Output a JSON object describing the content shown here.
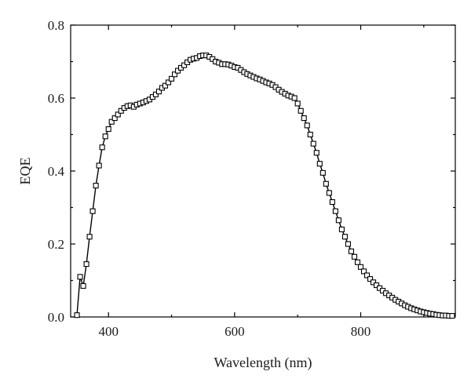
{
  "chart_data": {
    "type": "line",
    "title": "",
    "xlabel": "Wavelength (nm)",
    "ylabel": "EQE",
    "xlim": [
      340,
      950
    ],
    "ylim": [
      0.0,
      0.8
    ],
    "x_ticks": [
      400,
      600,
      800
    ],
    "x_tick_labels": [
      "400",
      "600",
      "800"
    ],
    "y_ticks": [
      0.0,
      0.2,
      0.4,
      0.6,
      0.8
    ],
    "y_tick_labels": [
      "0.0",
      "0.2",
      "0.4",
      "0.6",
      "0.8"
    ],
    "grid": false,
    "legend": "none",
    "marker": "open-square",
    "line_color": "#000000",
    "series": [
      {
        "x": [
          350,
          355,
          360,
          365,
          370,
          375,
          380,
          385,
          390,
          395,
          400,
          405,
          410,
          415,
          420,
          425,
          430,
          435,
          440,
          445,
          450,
          455,
          460,
          465,
          470,
          475,
          480,
          485,
          490,
          495,
          500,
          505,
          510,
          515,
          520,
          525,
          530,
          535,
          540,
          545,
          550,
          555,
          560,
          565,
          570,
          575,
          580,
          585,
          590,
          595,
          600,
          605,
          610,
          615,
          620,
          625,
          630,
          635,
          640,
          645,
          650,
          655,
          660,
          665,
          670,
          675,
          680,
          685,
          690,
          695,
          700,
          705,
          710,
          715,
          720,
          725,
          730,
          735,
          740,
          745,
          750,
          755,
          760,
          765,
          770,
          775,
          780,
          785,
          790,
          795,
          800,
          805,
          810,
          815,
          820,
          825,
          830,
          835,
          840,
          845,
          850,
          855,
          860,
          865,
          870,
          875,
          880,
          885,
          890,
          895,
          900,
          905,
          910,
          915,
          920,
          925,
          930,
          935,
          940,
          945
        ],
        "y": [
          0.005,
          0.11,
          0.085,
          0.145,
          0.22,
          0.29,
          0.36,
          0.415,
          0.465,
          0.495,
          0.515,
          0.535,
          0.545,
          0.555,
          0.565,
          0.573,
          0.578,
          0.58,
          0.576,
          0.582,
          0.585,
          0.588,
          0.592,
          0.596,
          0.603,
          0.61,
          0.618,
          0.628,
          0.634,
          0.643,
          0.653,
          0.665,
          0.675,
          0.683,
          0.69,
          0.698,
          0.705,
          0.708,
          0.71,
          0.715,
          0.717,
          0.717,
          0.713,
          0.707,
          0.7,
          0.697,
          0.693,
          0.693,
          0.692,
          0.689,
          0.685,
          0.683,
          0.677,
          0.671,
          0.666,
          0.662,
          0.658,
          0.654,
          0.651,
          0.647,
          0.643,
          0.64,
          0.636,
          0.63,
          0.623,
          0.617,
          0.612,
          0.607,
          0.604,
          0.6,
          0.585,
          0.565,
          0.545,
          0.525,
          0.5,
          0.475,
          0.45,
          0.42,
          0.395,
          0.365,
          0.34,
          0.315,
          0.29,
          0.265,
          0.24,
          0.22,
          0.2,
          0.18,
          0.165,
          0.15,
          0.137,
          0.125,
          0.114,
          0.104,
          0.095,
          0.087,
          0.079,
          0.072,
          0.065,
          0.059,
          0.053,
          0.047,
          0.042,
          0.037,
          0.032,
          0.028,
          0.024,
          0.021,
          0.018,
          0.015,
          0.013,
          0.011,
          0.009,
          0.008,
          0.006,
          0.005,
          0.004,
          0.004,
          0.003,
          0.003
        ]
      }
    ]
  }
}
